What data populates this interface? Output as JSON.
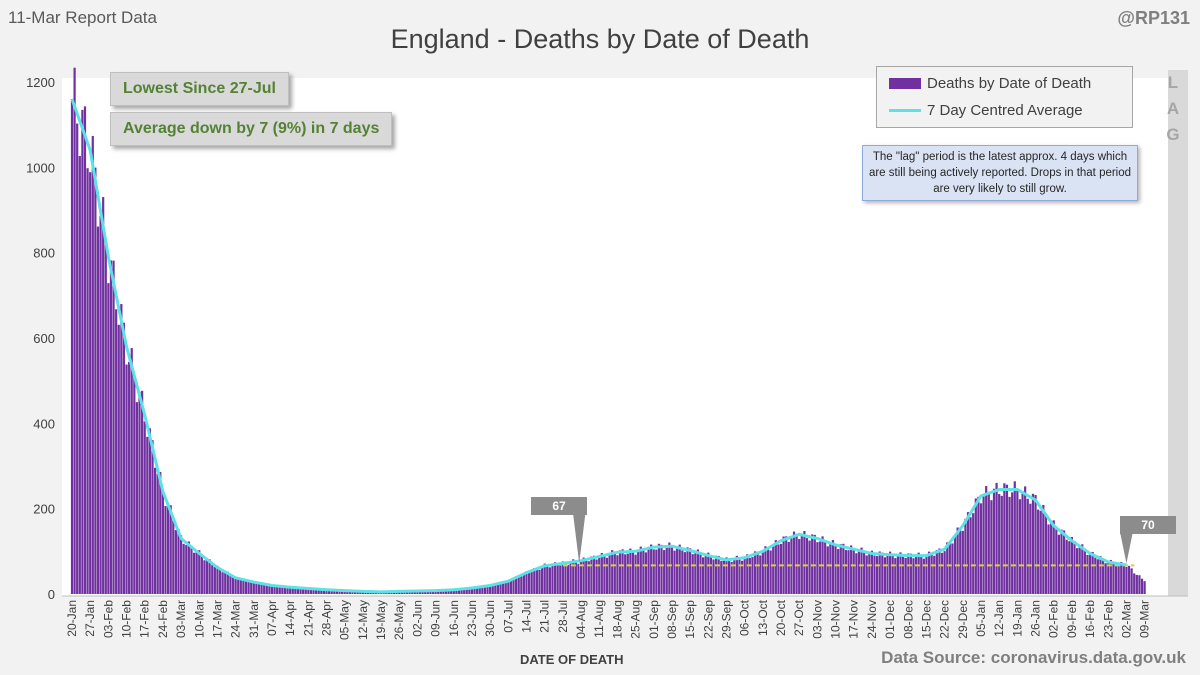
{
  "header": {
    "report_date": "11-Mar Report Data",
    "handle": "@RP131",
    "title": "England - Deaths by Date of Death"
  },
  "callouts": {
    "lowest": "Lowest Since 27-Jul",
    "average": "Average down by 7 (9%) in 7 days"
  },
  "legend": {
    "bars": "Deaths by Date of Death",
    "line": "7 Day Centred Average"
  },
  "note": "The \"lag\" period is the latest approx. 4 days which are still being actively reported. Drops in that period are very likely to still grow.",
  "lag_letters": [
    "L",
    "A",
    "G"
  ],
  "markers": {
    "left_value": "67",
    "right_value": "70"
  },
  "xaxis_title": "DATE OF DEATH",
  "source": "Data Source: coronavirus.data.gov.uk",
  "colors": {
    "bars": "#7030a0",
    "average": "#5ce1e6",
    "threshold": "#d6d632",
    "lag_band": "#d9d9d9"
  },
  "chart_data": {
    "type": "bar",
    "title": "England - Deaths by Date of Death",
    "xlabel": "DATE OF DEATH",
    "ylabel": "",
    "ylim": [
      0,
      1200
    ],
    "yticks": [
      0,
      200,
      400,
      600,
      800,
      1000,
      1200
    ],
    "xtick_labels": [
      "20-Jan",
      "27-Jan",
      "03-Feb",
      "10-Feb",
      "17-Feb",
      "24-Feb",
      "03-Mar",
      "10-Mar",
      "17-Mar",
      "24-Mar",
      "31-Mar",
      "07-Apr",
      "14-Apr",
      "21-Apr",
      "28-Apr",
      "05-May",
      "12-May",
      "19-May",
      "26-May",
      "02-Jun",
      "09-Jun",
      "16-Jun",
      "23-Jun",
      "30-Jun",
      "07-Jul",
      "14-Jul",
      "21-Jul",
      "28-Jul",
      "04-Aug",
      "11-Aug",
      "18-Aug",
      "25-Aug",
      "01-Sep",
      "08-Sep",
      "15-Sep",
      "22-Sep",
      "29-Sep",
      "06-Oct",
      "13-Oct",
      "20-Oct",
      "27-Oct",
      "03-Nov",
      "10-Nov",
      "17-Nov",
      "24-Nov",
      "01-Dec",
      "08-Dec",
      "15-Dec",
      "22-Dec",
      "29-Dec",
      "05-Jan",
      "12-Jan",
      "19-Jan",
      "26-Jan",
      "02-Feb",
      "09-Feb",
      "16-Feb",
      "23-Feb",
      "02-Mar",
      "09-Mar"
    ],
    "weekly_values": [
      1160,
      1040,
      790,
      580,
      420,
      240,
      130,
      95,
      62,
      38,
      28,
      20,
      16,
      13,
      10,
      8,
      6,
      5,
      6,
      7,
      8,
      10,
      14,
      20,
      30,
      50,
      66,
      72,
      78,
      88,
      98,
      100,
      110,
      112,
      102,
      90,
      80,
      85,
      100,
      125,
      140,
      130,
      115,
      105,
      95,
      92,
      90,
      90,
      105,
      160,
      230,
      245,
      245,
      220,
      160,
      125,
      95,
      75,
      68,
      30
    ],
    "series": [
      {
        "name": "Deaths by Date of Death",
        "type": "bar"
      },
      {
        "name": "7 Day Centred Average",
        "type": "line"
      }
    ],
    "reference_line": {
      "value": 67
    },
    "annotations": [
      {
        "x": "28-Jul",
        "value": 67
      },
      {
        "x": "02-Mar",
        "value": 70
      }
    ],
    "legend_position": "top-right",
    "grid": false
  }
}
